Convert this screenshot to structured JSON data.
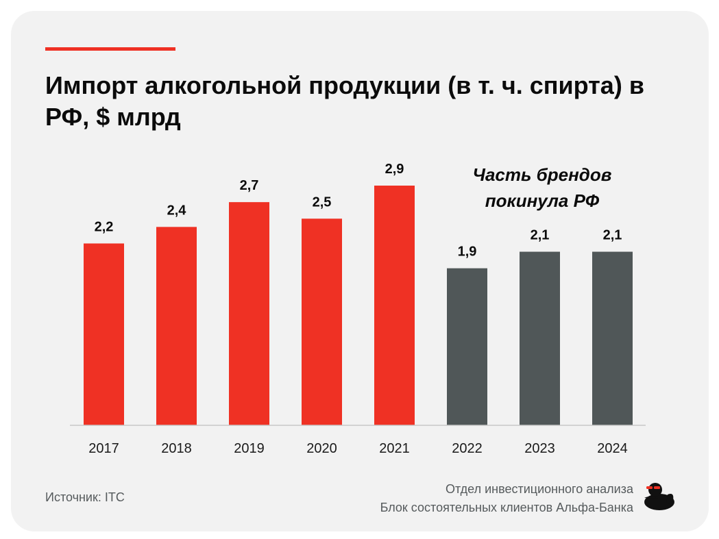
{
  "header": {
    "title": "Импорт алкогольной продукции (в т. ч. спирта) в РФ, $ млрд"
  },
  "annotation": {
    "note": "Часть брендов покинула РФ"
  },
  "footer": {
    "source": "Источник: ITC",
    "credit_line1": "Отдел инвестиционного анализа",
    "credit_line2": "Блок состоятельных клиентов Альфа-Банка"
  },
  "colors": {
    "accent": "#ef3124",
    "muted": "#505758",
    "background": "#f2f2f2",
    "text": "#0b0b0b"
  },
  "icons": {
    "logo": "duck-logo-icon"
  },
  "chart_data": {
    "type": "bar",
    "title": "Импорт алкогольной продукции (в т. ч. спирта) в РФ, $ млрд",
    "xlabel": "",
    "ylabel": "",
    "ylim": [
      0,
      2.9
    ],
    "grid": false,
    "legend": "none",
    "categories": [
      "2017",
      "2018",
      "2019",
      "2020",
      "2021",
      "2022",
      "2023",
      "2024"
    ],
    "values": [
      2.2,
      2.4,
      2.7,
      2.5,
      2.9,
      1.9,
      2.1,
      2.1
    ],
    "value_labels": [
      "2,2",
      "2,4",
      "2,7",
      "2,5",
      "2,9",
      "1,9",
      "2,1",
      "2,1"
    ],
    "bar_colors": [
      "#ef3124",
      "#ef3124",
      "#ef3124",
      "#ef3124",
      "#ef3124",
      "#505758",
      "#505758",
      "#505758"
    ]
  }
}
